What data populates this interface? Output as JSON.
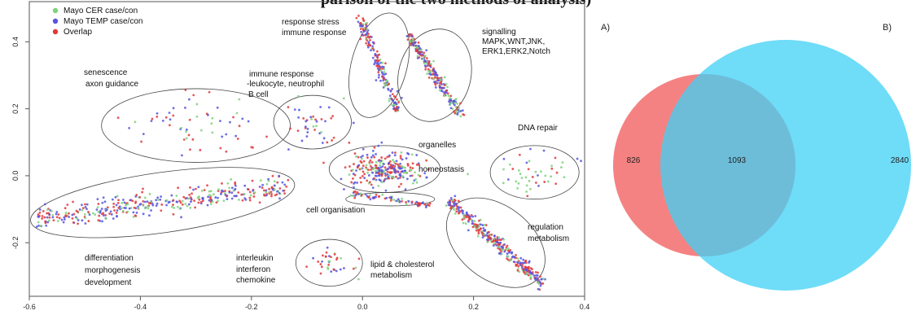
{
  "page_title": "parison of the two methods of analysis)",
  "panel_a_label": "A)",
  "panel_b_label": "B)",
  "colors": {
    "green": "#7fd27f",
    "blue": "#5555e0",
    "red": "#e03a3a",
    "venn_left": "#f47474",
    "venn_right": "#3fd0f5"
  },
  "chart_data": [
    {
      "type": "scatter",
      "xlim": [
        -0.6,
        0.4
      ],
      "ylim": [
        -0.36,
        0.52
      ],
      "x_ticks": [
        "-0.6",
        "-0.4",
        "-0.2",
        "0.0",
        "0.2",
        "0.4"
      ],
      "y_ticks": [
        "-0.2",
        "0.0",
        "0.2",
        "0.4"
      ],
      "legend": [
        "Mayo CER case/con",
        "Mayo TEMP case/con",
        "Overlap"
      ],
      "legend_placement": "top-left",
      "grid": false,
      "clusters": [
        {
          "label": "senescence\naxon guidance",
          "cx": -0.3,
          "cy": 0.15,
          "rx": 0.17,
          "ry": 0.11,
          "n": 60,
          "style": "blob"
        },
        {
          "label": "immune response\n-leukocyte, neutrophil\nB cell",
          "cx": -0.09,
          "cy": 0.16,
          "rx": 0.07,
          "ry": 0.08,
          "n": 40,
          "style": "blob"
        },
        {
          "label": "response stress\nimmune response",
          "cx": 0.03,
          "cy": 0.33,
          "rx": 0.05,
          "ry": 0.16,
          "n": 180,
          "style": "streak"
        },
        {
          "label": "signalling\nMAPK,WNT,JNK,\nERK1,ERK2,Notch",
          "cx": 0.13,
          "cy": 0.3,
          "rx": 0.065,
          "ry": 0.14,
          "n": 230,
          "style": "streak"
        },
        {
          "label": "organelles\nhomeostasis",
          "cx": 0.04,
          "cy": 0.02,
          "rx": 0.1,
          "ry": 0.07,
          "n": 260,
          "style": "dense"
        },
        {
          "label": "DNA repair",
          "cx": 0.31,
          "cy": 0.01,
          "rx": 0.08,
          "ry": 0.08,
          "n": 45,
          "style": "blob"
        },
        {
          "label": "cell organisation",
          "cx": 0.05,
          "cy": -0.07,
          "rx": 0.08,
          "ry": 0.02,
          "n": 70,
          "style": "line"
        },
        {
          "label": "differentiation\nmorphogenesis\ndevelopment",
          "cx": -0.36,
          "cy": -0.08,
          "rx": 0.24,
          "ry": 0.09,
          "n": 380,
          "style": "band"
        },
        {
          "label": "interleukin\ninterferon\nchemokine",
          "cx": -0.06,
          "cy": -0.26,
          "rx": 0.06,
          "ry": 0.07,
          "n": 35,
          "style": "blob"
        },
        {
          "label": "lipid & cholesterol\nmetabolism",
          "cx": 0.24,
          "cy": -0.2,
          "rx": 0.1,
          "ry": 0.11,
          "n": 320,
          "style": "diagonal"
        }
      ],
      "region_labels": [
        "senescence",
        "axon guidance",
        "immune response",
        "-leukocyte, neutrophil",
        "B cell",
        "response stress",
        "immune response",
        "signalling",
        "MAPK,WNT,JNK,",
        "ERK1,ERK2,Notch",
        "DNA repair",
        "organelles",
        "homeostasis",
        "cell organisation",
        "regulation",
        "metabolism",
        "differentiation",
        "morphogenesis",
        "development",
        "interleukin",
        "interferon",
        "chemokine",
        "lipid & cholesterol",
        "metabolism"
      ]
    },
    {
      "type": "venn",
      "sets": [
        "left",
        "right"
      ],
      "values": {
        "left_only": 826,
        "overlap": 1093,
        "right_only": 2840
      },
      "labels": [
        "826",
        "1093",
        "2840"
      ]
    }
  ]
}
